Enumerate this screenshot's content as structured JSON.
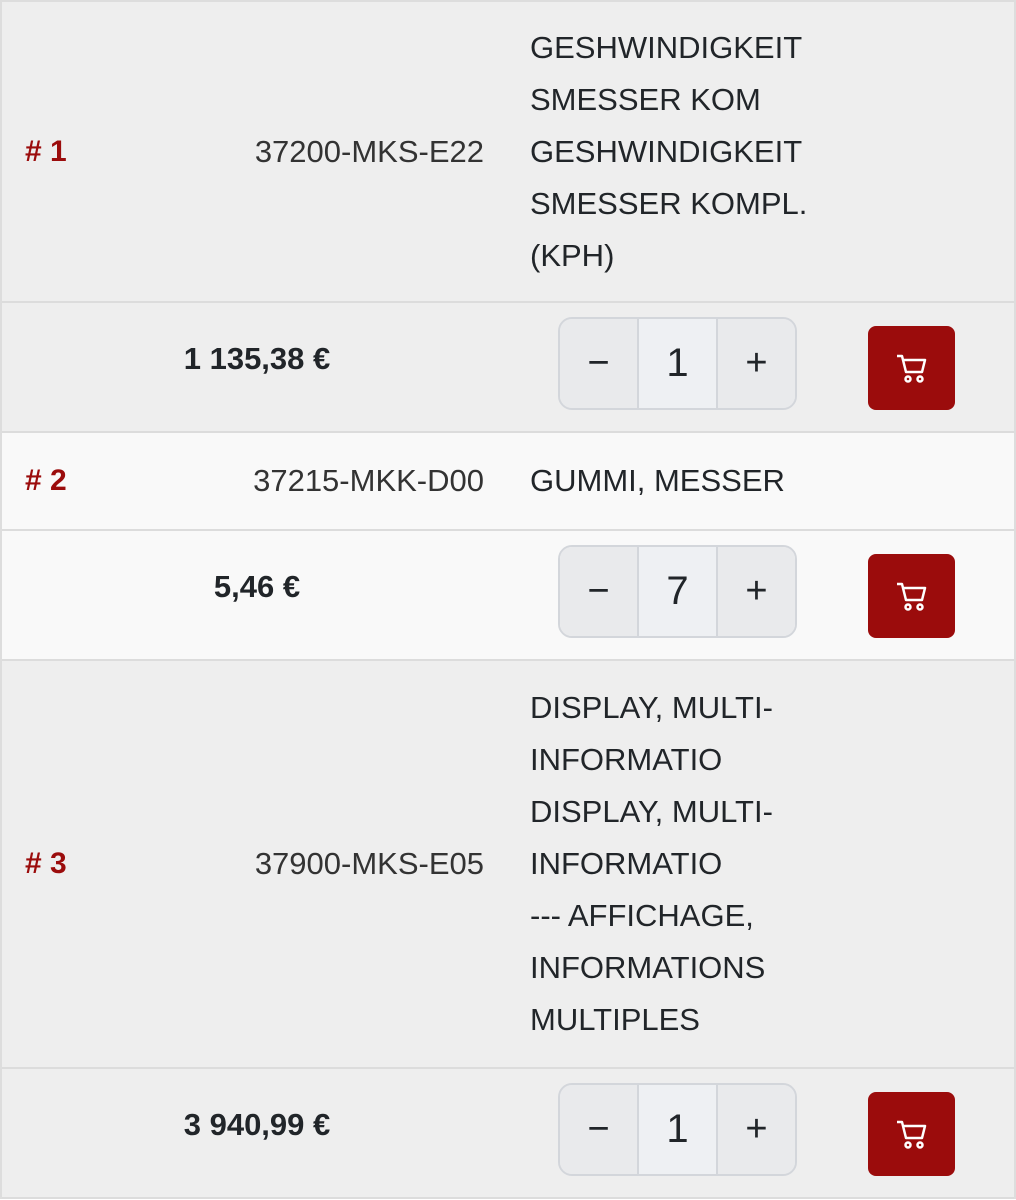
{
  "colors": {
    "accent": "#9b0c0c"
  },
  "icons": {
    "cart": "cart-icon",
    "minus": "minus-icon",
    "plus": "plus-icon"
  },
  "items": [
    {
      "index": "# 1",
      "part_number": "37200-MKS-E22",
      "description_lines": [
        "GESHWINDIGKEIT",
        "SMESSER KOM",
        "GESHWINDIGKEIT",
        "SMESSER KOMPL.",
        "(KPH)"
      ],
      "price": "1 135,38 €",
      "quantity": "1",
      "minus": "−",
      "plus": "+"
    },
    {
      "index": "# 2",
      "part_number": "37215-MKK-D00",
      "description_lines": [
        "GUMMI, MESSER"
      ],
      "price": "5,46 €",
      "quantity": "7",
      "minus": "−",
      "plus": "+"
    },
    {
      "index": "# 3",
      "part_number": "37900-MKS-E05",
      "description_lines": [
        "DISPLAY, MULTI-",
        "INFORMATIO",
        "DISPLAY, MULTI-",
        "INFORMATIO",
        "--- AFFICHAGE,",
        "INFORMATIONS",
        "MULTIPLES"
      ],
      "price": "3 940,99 €",
      "quantity": "1",
      "minus": "−",
      "plus": "+"
    }
  ]
}
